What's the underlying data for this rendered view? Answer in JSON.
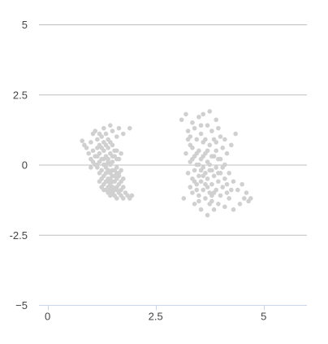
{
  "chart_data": {
    "type": "scatter",
    "title": "",
    "xlabel": "",
    "ylabel": "",
    "xlim": [
      -0.2,
      6.0
    ],
    "ylim": [
      -5,
      5
    ],
    "grid": true,
    "x_ticks": [
      0,
      2.5,
      5
    ],
    "x_tick_labels": [
      "0",
      "2.5",
      "5"
    ],
    "y_ticks": [
      5,
      2.5,
      0,
      -2.5,
      -5
    ],
    "y_tick_labels": [
      "5",
      "2.5",
      "0",
      "-2.5",
      "−5"
    ],
    "point_color": "#d0d0d0",
    "series": [
      {
        "values_xy": [
          [
            0.8,
            0.85
          ],
          [
            0.85,
            0.7
          ],
          [
            0.9,
            0.6
          ],
          [
            0.95,
            0.4
          ],
          [
            1.0,
            0.2
          ],
          [
            1.0,
            0.8
          ],
          [
            1.05,
            1.1
          ],
          [
            1.05,
            0.5
          ],
          [
            1.1,
            0.3
          ],
          [
            1.1,
            0.0
          ],
          [
            1.1,
            1.2
          ],
          [
            1.15,
            0.9
          ],
          [
            1.15,
            0.6
          ],
          [
            1.15,
            -0.1
          ],
          [
            1.2,
            0.4
          ],
          [
            1.2,
            0.1
          ],
          [
            1.2,
            -0.3
          ],
          [
            1.2,
            0.7
          ],
          [
            1.25,
            1.0
          ],
          [
            1.25,
            0.2
          ],
          [
            1.25,
            -0.5
          ],
          [
            1.25,
            -0.2
          ],
          [
            1.3,
            0.5
          ],
          [
            1.3,
            0.0
          ],
          [
            1.3,
            -0.4
          ],
          [
            1.3,
            -0.7
          ],
          [
            1.3,
            0.8
          ],
          [
            1.3,
            1.3
          ],
          [
            1.35,
            0.3
          ],
          [
            1.35,
            -0.1
          ],
          [
            1.35,
            -0.6
          ],
          [
            1.35,
            -0.9
          ],
          [
            1.35,
            1.1
          ],
          [
            1.4,
            0.6
          ],
          [
            1.4,
            0.2
          ],
          [
            1.4,
            -0.2
          ],
          [
            1.4,
            -0.5
          ],
          [
            1.4,
            -0.8
          ],
          [
            1.4,
            0.9
          ],
          [
            1.4,
            -1.0
          ],
          [
            1.45,
            1.4
          ],
          [
            1.45,
            0.4
          ],
          [
            1.45,
            0.0
          ],
          [
            1.45,
            -0.3
          ],
          [
            1.45,
            -0.7
          ],
          [
            1.45,
            -1.1
          ],
          [
            1.5,
            0.7
          ],
          [
            1.5,
            0.1
          ],
          [
            1.5,
            -0.4
          ],
          [
            1.5,
            -0.8
          ],
          [
            1.5,
            -1.0
          ],
          [
            1.5,
            1.2
          ],
          [
            1.55,
            0.3
          ],
          [
            1.55,
            -0.2
          ],
          [
            1.55,
            -0.6
          ],
          [
            1.55,
            -0.9
          ],
          [
            1.55,
            -1.1
          ],
          [
            1.6,
            0.5
          ],
          [
            1.6,
            -0.1
          ],
          [
            1.6,
            -0.5
          ],
          [
            1.6,
            -0.8
          ],
          [
            1.6,
            -1.2
          ],
          [
            1.6,
            1.0
          ],
          [
            1.65,
            0.2
          ],
          [
            1.65,
            -0.3
          ],
          [
            1.65,
            -0.7
          ],
          [
            1.65,
            -1.0
          ],
          [
            1.65,
            1.3
          ],
          [
            1.7,
            -0.6
          ],
          [
            1.7,
            -0.9
          ],
          [
            1.7,
            -1.1
          ],
          [
            1.7,
            0.4
          ],
          [
            1.75,
            -0.8
          ],
          [
            1.75,
            -1.2
          ],
          [
            1.75,
            1.1
          ],
          [
            1.8,
            -1.0
          ],
          [
            1.85,
            -1.1
          ],
          [
            1.9,
            1.3
          ],
          [
            1.9,
            -1.2
          ],
          [
            1.95,
            -1.1
          ],
          [
            1.0,
            -0.1
          ],
          [
            1.05,
            0.1
          ],
          [
            1.15,
            0.3
          ],
          [
            1.2,
            -0.6
          ],
          [
            1.25,
            0.6
          ],
          [
            1.3,
            -0.9
          ],
          [
            1.35,
            0.7
          ],
          [
            1.4,
            0.1
          ],
          [
            1.45,
            -0.5
          ],
          [
            1.5,
            -0.2
          ],
          [
            1.55,
            0.5
          ],
          [
            1.6,
            0.2
          ],
          [
            1.35,
            -0.3
          ],
          [
            1.45,
            0.8
          ],
          [
            1.25,
            -0.8
          ],
          [
            1.5,
            -0.6
          ],
          [
            1.4,
            -0.2
          ],
          [
            1.3,
            0.2
          ],
          [
            1.6,
            -0.3
          ],
          [
            1.2,
            1.1
          ],
          [
            1.65,
            -0.4
          ],
          [
            1.55,
            -0.4
          ],
          [
            1.7,
            -0.2
          ],
          [
            1.45,
            -0.9
          ],
          [
            1.15,
            0.0
          ],
          [
            1.75,
            -0.5
          ],
          [
            1.35,
            0.0
          ],
          [
            1.5,
            0.3
          ],
          [
            1.4,
            -0.6
          ],
          [
            1.6,
            -0.9
          ]
        ]
      },
      {
        "values_xy": [
          [
            3.1,
            1.6
          ],
          [
            3.15,
            -1.2
          ],
          [
            3.2,
            1.8
          ],
          [
            3.2,
            0.4
          ],
          [
            3.25,
            1.2
          ],
          [
            3.25,
            -0.3
          ],
          [
            3.3,
            1.0
          ],
          [
            3.3,
            0.1
          ],
          [
            3.3,
            -0.8
          ],
          [
            3.35,
            1.5
          ],
          [
            3.35,
            0.6
          ],
          [
            3.35,
            -0.5
          ],
          [
            3.35,
            -1.0
          ],
          [
            3.4,
            1.3
          ],
          [
            3.4,
            0.3
          ],
          [
            3.4,
            -0.2
          ],
          [
            3.4,
            -1.4
          ],
          [
            3.45,
            0.9
          ],
          [
            3.45,
            0.0
          ],
          [
            3.45,
            -0.7
          ],
          [
            3.5,
            1.7
          ],
          [
            3.5,
            0.5
          ],
          [
            3.5,
            -0.4
          ],
          [
            3.5,
            -1.1
          ],
          [
            3.55,
            1.1
          ],
          [
            3.55,
            0.2
          ],
          [
            3.55,
            -0.6
          ],
          [
            3.55,
            -1.6
          ],
          [
            3.6,
            0.8
          ],
          [
            3.6,
            -0.1
          ],
          [
            3.6,
            -0.9
          ],
          [
            3.6,
            1.8
          ],
          [
            3.65,
            0.4
          ],
          [
            3.65,
            -0.3
          ],
          [
            3.65,
            -1.2
          ],
          [
            3.7,
            1.4
          ],
          [
            3.7,
            0.1
          ],
          [
            3.7,
            -0.5
          ],
          [
            3.7,
            -1.8
          ],
          [
            3.75,
            0.7
          ],
          [
            3.75,
            -0.2
          ],
          [
            3.75,
            -1.0
          ],
          [
            3.75,
            1.9
          ],
          [
            3.8,
            1.2
          ],
          [
            3.8,
            0.3
          ],
          [
            3.8,
            -0.7
          ],
          [
            3.8,
            -1.3
          ],
          [
            3.85,
            0.9
          ],
          [
            3.85,
            -0.4
          ],
          [
            3.85,
            -1.6
          ],
          [
            3.9,
            1.6
          ],
          [
            3.9,
            0.5
          ],
          [
            3.9,
            -0.1
          ],
          [
            3.9,
            -0.9
          ],
          [
            3.95,
            0.2
          ],
          [
            3.95,
            -0.6
          ],
          [
            3.95,
            -1.4
          ],
          [
            4.0,
            1.0
          ],
          [
            4.0,
            -0.3
          ],
          [
            4.0,
            -1.1
          ],
          [
            4.05,
            0.6
          ],
          [
            4.05,
            -0.8
          ],
          [
            4.1,
            0.0
          ],
          [
            4.1,
            -0.5
          ],
          [
            4.1,
            -1.5
          ],
          [
            4.15,
            0.4
          ],
          [
            4.15,
            -1.0
          ],
          [
            4.2,
            -0.3
          ],
          [
            4.2,
            -1.2
          ],
          [
            4.25,
            0.7
          ],
          [
            4.3,
            -0.6
          ],
          [
            4.3,
            -1.6
          ],
          [
            4.35,
            1.1
          ],
          [
            4.4,
            -0.9
          ],
          [
            4.45,
            -1.4
          ],
          [
            4.5,
            -0.7
          ],
          [
            4.55,
            -1.2
          ],
          [
            4.6,
            -1.0
          ],
          [
            4.65,
            -1.3
          ],
          [
            4.7,
            -1.2
          ],
          [
            3.3,
            0.7
          ],
          [
            3.45,
            -0.9
          ],
          [
            3.6,
            0.3
          ],
          [
            3.7,
            -0.8
          ],
          [
            3.8,
            -0.2
          ],
          [
            3.9,
            0.8
          ],
          [
            4.0,
            0.2
          ],
          [
            3.55,
            1.4
          ],
          [
            3.65,
            0.9
          ],
          [
            3.75,
            0.0
          ],
          [
            3.85,
            -1.0
          ],
          [
            3.95,
            -0.3
          ],
          [
            3.4,
            -0.6
          ],
          [
            3.5,
            0.0
          ],
          [
            3.6,
            -0.4
          ],
          [
            3.7,
            0.5
          ],
          [
            3.8,
            -1.1
          ],
          [
            4.05,
            -0.1
          ],
          [
            3.25,
            0.9
          ],
          [
            3.35,
            0.2
          ],
          [
            4.15,
            -0.7
          ],
          [
            4.25,
            -0.9
          ],
          [
            3.45,
            0.4
          ],
          [
            3.55,
            -0.2
          ],
          [
            3.65,
            -0.7
          ],
          [
            3.75,
            -1.4
          ],
          [
            3.85,
            0.3
          ],
          [
            3.95,
            1.3
          ],
          [
            4.1,
            0.9
          ],
          [
            3.5,
            -1.3
          ]
        ]
      }
    ]
  }
}
